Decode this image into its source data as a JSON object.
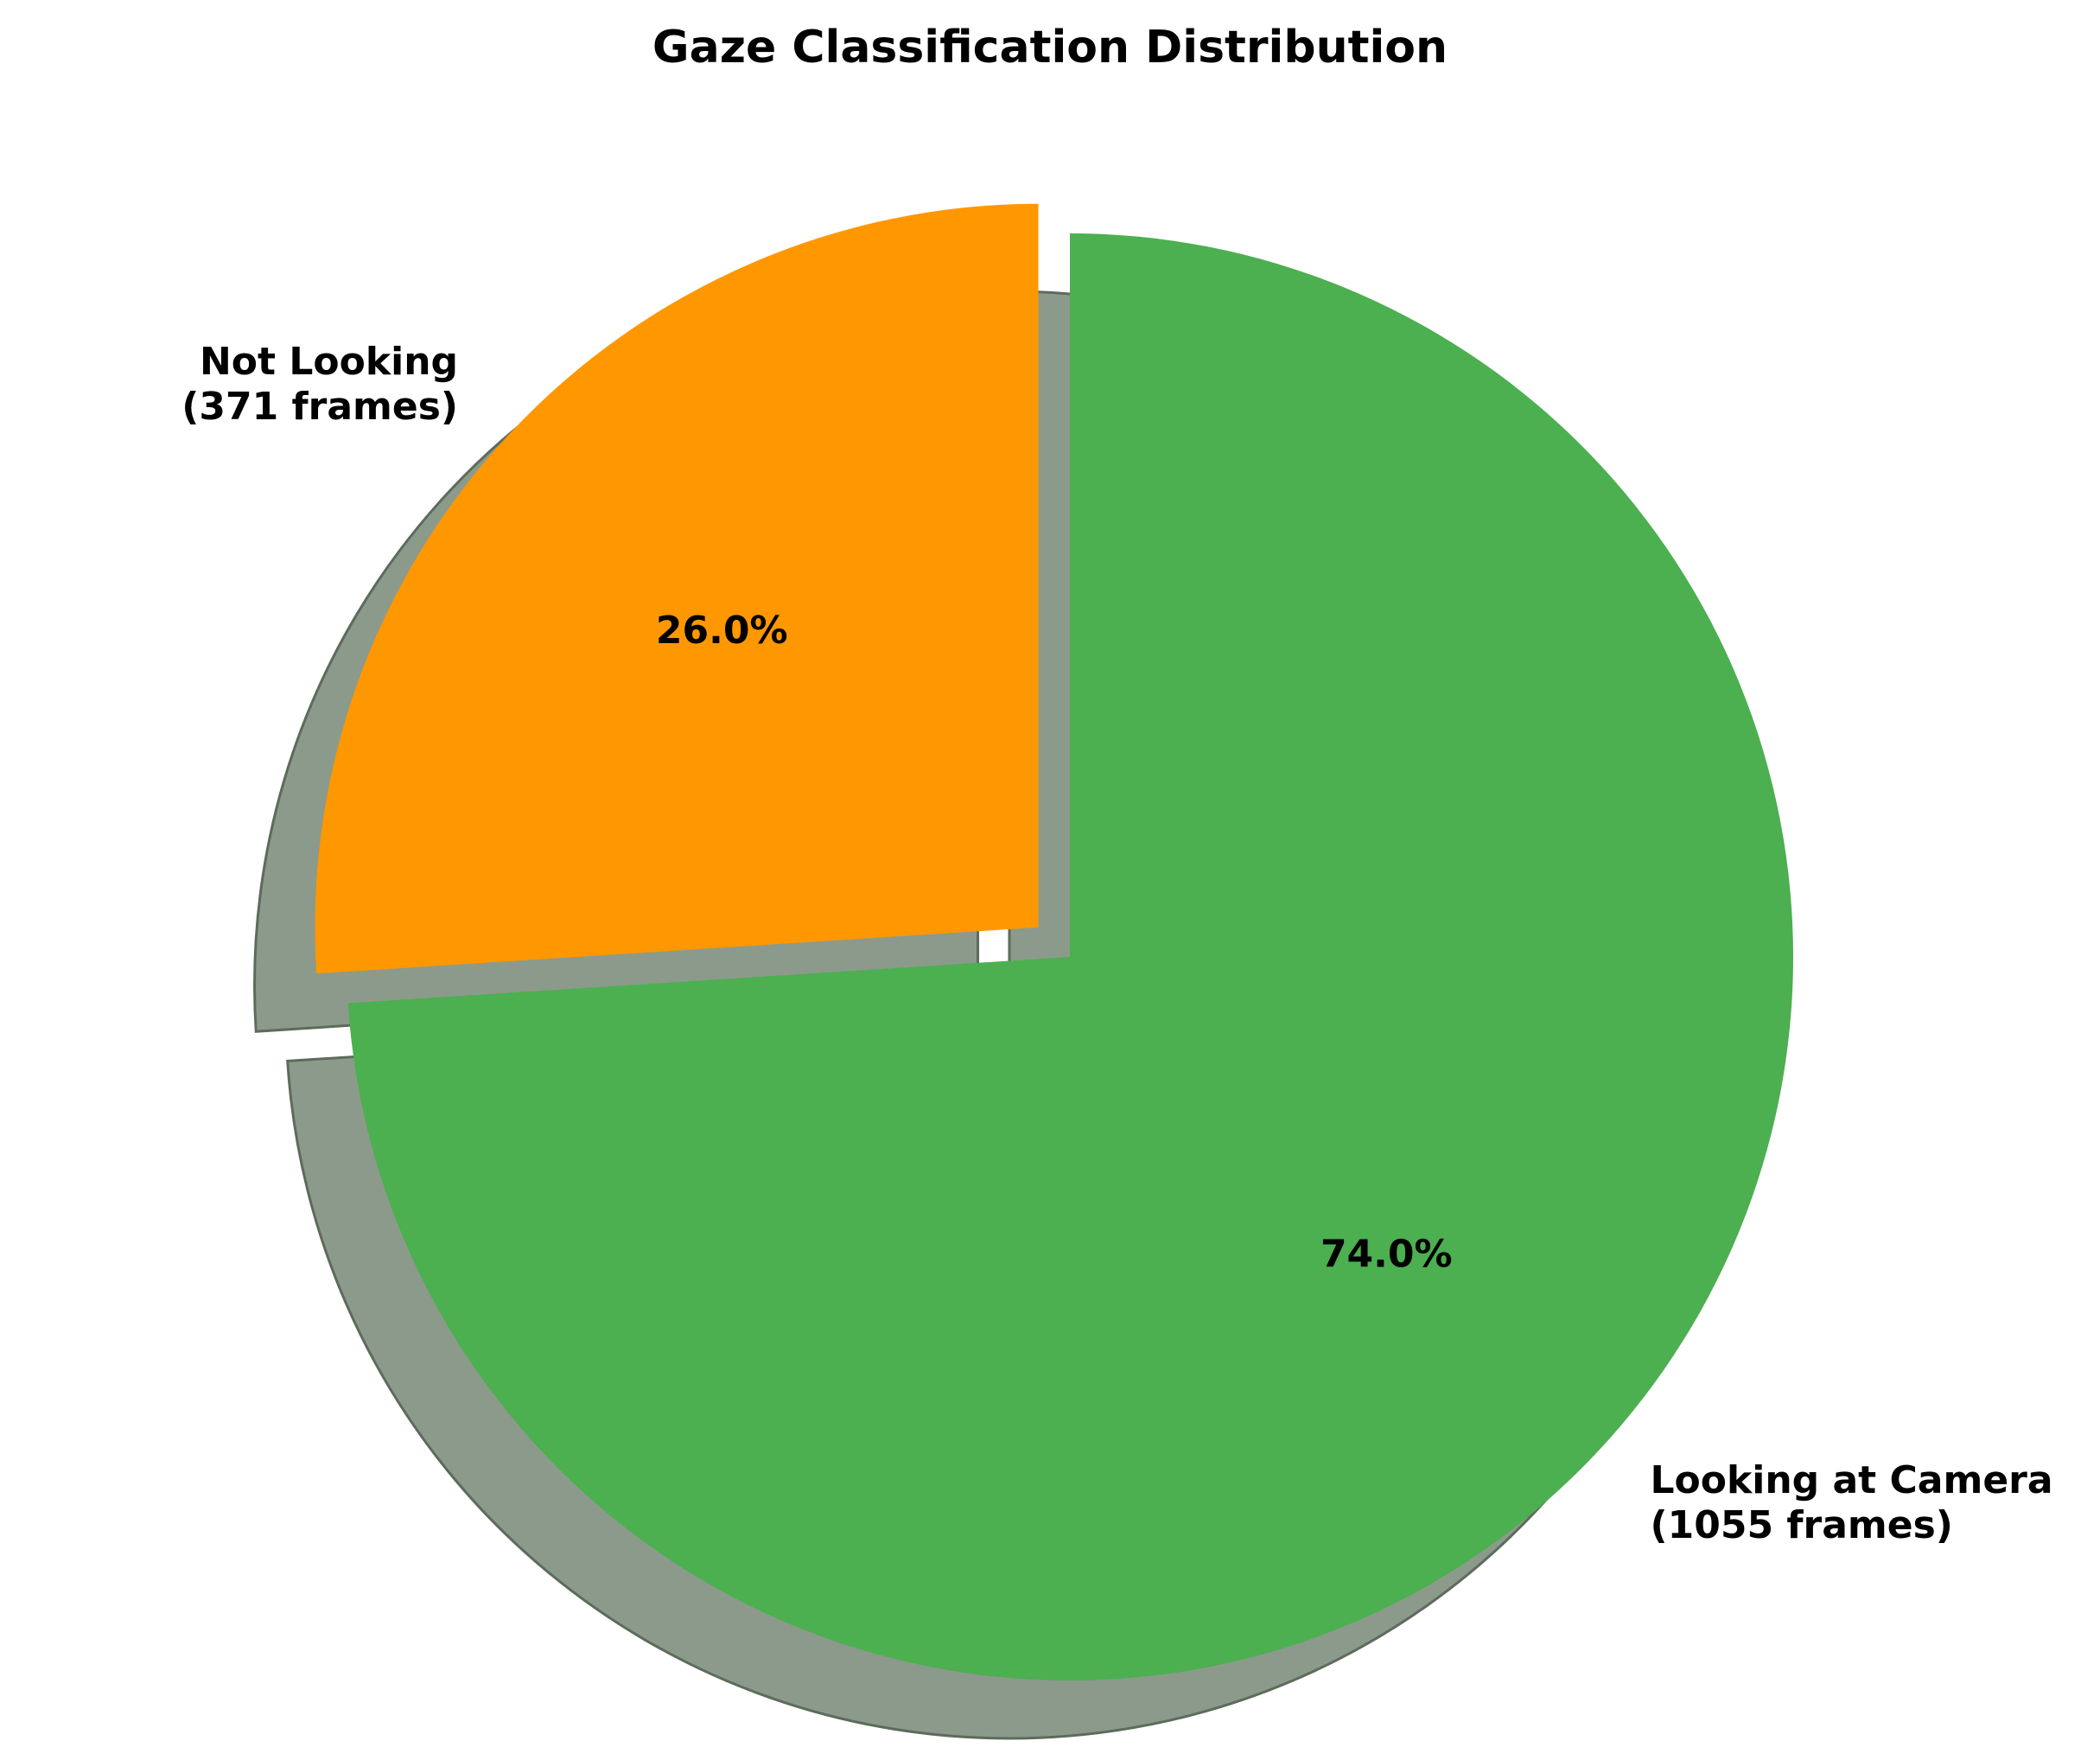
{
  "chart_data": {
    "type": "pie",
    "title": "Gaze Classification Distribution",
    "start_angle_deg": 90,
    "direction": "clockwise",
    "shadow": true,
    "slices": [
      {
        "label_line1": "Looking at Camera",
        "label_line2": "(1055 frames)",
        "frames": 1055,
        "percent_label": "74.0%",
        "color": "#4caf50",
        "exploded": false
      },
      {
        "label_line1": "Not Looking",
        "label_line2": "(371 frames)",
        "frames": 371,
        "percent_label": "26.0%",
        "color": "#ff9800",
        "exploded": true
      }
    ]
  }
}
